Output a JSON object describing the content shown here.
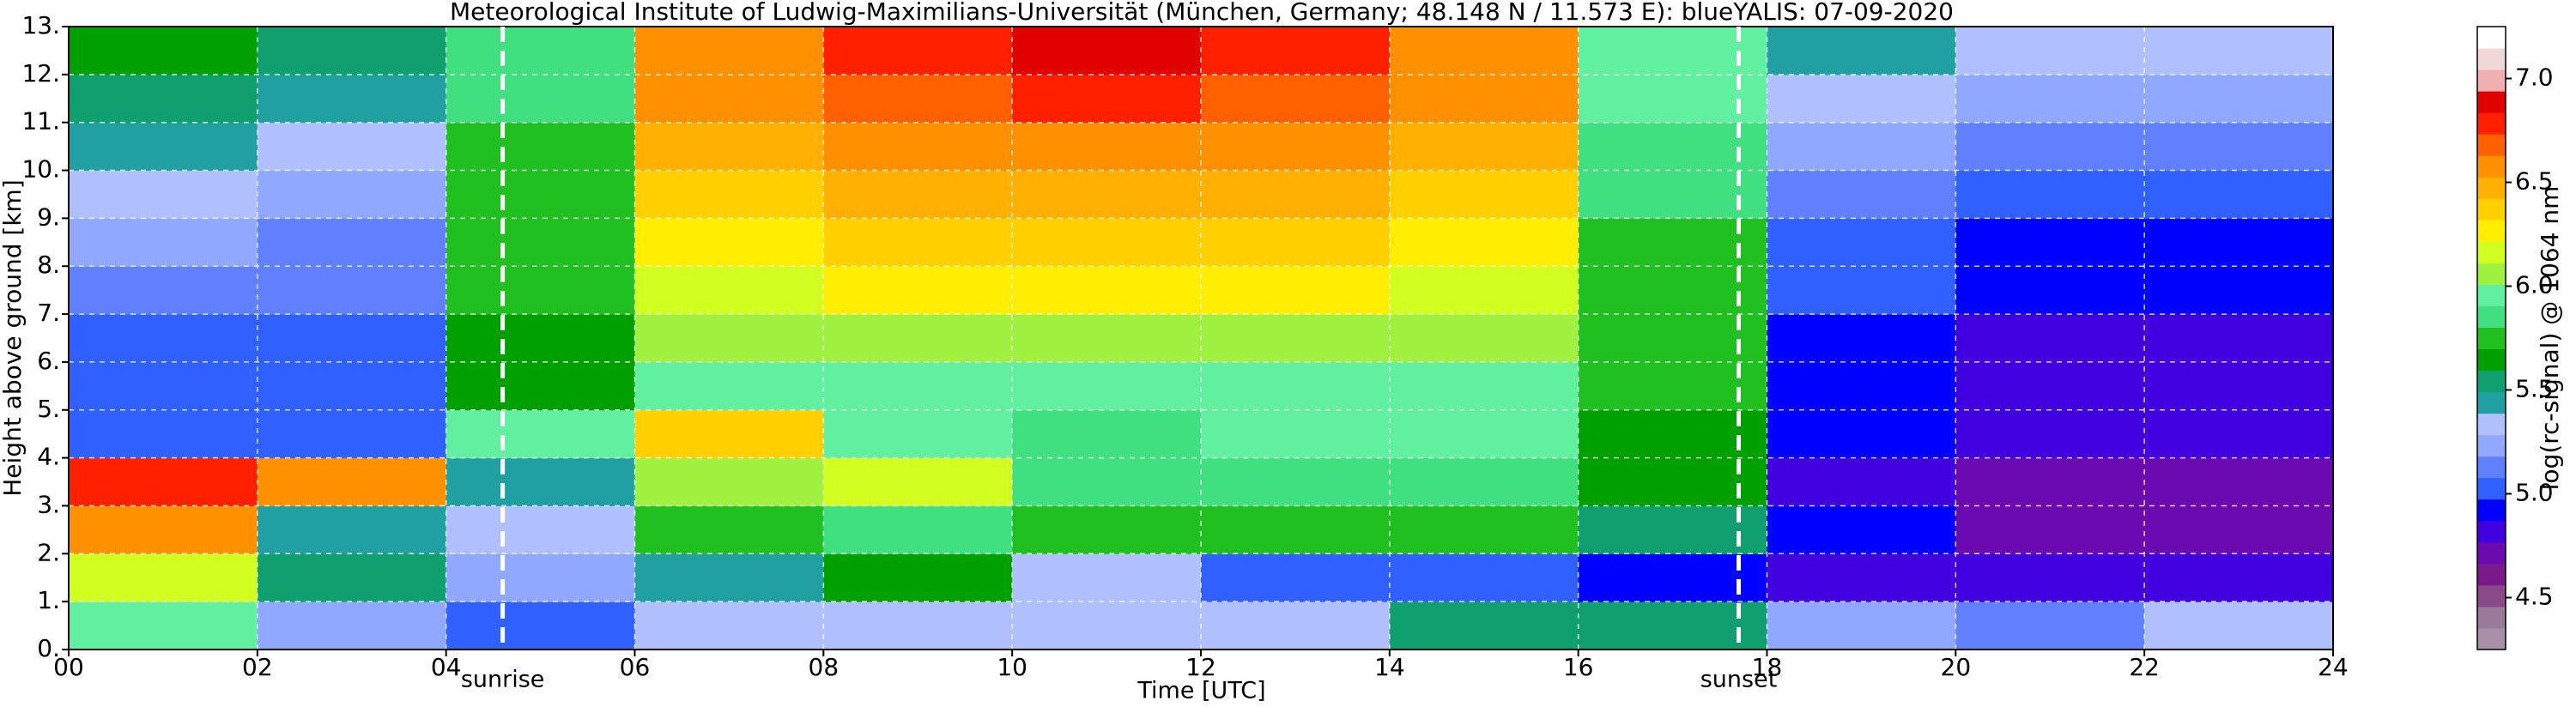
{
  "chart_data": {
    "type": "heatmap",
    "title": "Meteorological Institute of Ludwig-Maximilians-Universität (München, Germany; 48.148 N / 11.573 E):    blueYALIS: 07-09-2020",
    "x_label": "Time [UTC]",
    "y_label": "Height above ground [km]",
    "colorbar_label": "log(rc-signal) @ 1064 nm",
    "xlim": [
      0,
      24
    ],
    "xticks": [
      {
        "value": 0,
        "label": "00"
      },
      {
        "value": 2,
        "label": "02"
      },
      {
        "value": 4,
        "label": "04"
      },
      {
        "value": 6,
        "label": "06"
      },
      {
        "value": 8,
        "label": "08"
      },
      {
        "value": 10,
        "label": "10"
      },
      {
        "value": 12,
        "label": "12"
      },
      {
        "value": 14,
        "label": "14"
      },
      {
        "value": 16,
        "label": "16"
      },
      {
        "value": 18,
        "label": "18"
      },
      {
        "value": 20,
        "label": "20"
      },
      {
        "value": 22,
        "label": "22"
      },
      {
        "value": 24,
        "label": "24"
      }
    ],
    "ylim": [
      0,
      13
    ],
    "yticks": [
      {
        "value": 0,
        "label": "0."
      },
      {
        "value": 1,
        "label": "1."
      },
      {
        "value": 2,
        "label": "2."
      },
      {
        "value": 3,
        "label": "3."
      },
      {
        "value": 4,
        "label": "4."
      },
      {
        "value": 5,
        "label": "5."
      },
      {
        "value": 6,
        "label": "6."
      },
      {
        "value": 7,
        "label": "7."
      },
      {
        "value": 8,
        "label": "8."
      },
      {
        "value": 9,
        "label": "9."
      },
      {
        "value": 10,
        "label": "10."
      },
      {
        "value": 11,
        "label": "11."
      },
      {
        "value": 12,
        "label": "12."
      },
      {
        "value": 13,
        "label": "13."
      }
    ],
    "zlim": [
      4.25,
      7.25
    ],
    "zticks": [
      4.5,
      {
        "value": 5,
        "label": "5.0"
      },
      5.5,
      {
        "value": 6,
        "label": "6.0"
      },
      6.5,
      {
        "value": 7,
        "label": "7.0"
      }
    ],
    "grid": true,
    "colormap": [
      "#a890a8",
      "#9a7a9a",
      "#8a4a8a",
      "#7a1a8a",
      "#6a0ab0",
      "#4000e0",
      "#0000ff",
      "#3060ff",
      "#6080ff",
      "#90a8ff",
      "#b0c0ff",
      "#20a0a0",
      "#10a070",
      "#00a000",
      "#20c020",
      "#40e080",
      "#60f0a0",
      "#a0f040",
      "#d0ff20",
      "#ffee00",
      "#ffd000",
      "#ffb000",
      "#ff9000",
      "#ff6000",
      "#ff2000",
      "#e00000",
      "#f0b0b0",
      "#f0d8d8",
      "#ffffff"
    ],
    "x_edges": [
      0,
      2,
      4,
      6,
      8,
      10,
      12,
      14,
      16,
      18,
      20,
      22,
      24
    ],
    "y_edges": [
      0,
      1,
      2,
      3,
      4,
      5,
      6,
      7,
      8,
      9,
      10,
      11,
      12,
      13
    ],
    "values": [
      [
        6.0,
        5.2,
        5.0,
        5.3,
        5.3,
        5.3,
        5.3,
        5.5,
        5.5,
        5.2,
        5.1,
        5.3
      ],
      [
        6.2,
        5.5,
        5.2,
        5.4,
        5.6,
        5.3,
        5.0,
        5.0,
        4.9,
        4.8,
        4.8,
        4.8
      ],
      [
        6.6,
        5.4,
        5.3,
        5.8,
        5.9,
        5.8,
        5.8,
        5.8,
        5.5,
        4.9,
        4.7,
        4.7
      ],
      [
        6.8,
        6.6,
        5.4,
        6.1,
        6.2,
        5.9,
        5.9,
        5.9,
        5.6,
        4.8,
        4.7,
        4.7
      ],
      [
        5.0,
        5.0,
        6.0,
        6.4,
        6.0,
        5.9,
        6.0,
        6.0,
        5.6,
        4.9,
        4.8,
        4.8
      ],
      [
        5.0,
        5.0,
        5.6,
        6.0,
        6.0,
        6.0,
        6.0,
        6.0,
        5.7,
        4.9,
        4.8,
        4.8
      ],
      [
        5.0,
        5.0,
        5.6,
        6.1,
        6.1,
        6.1,
        6.1,
        6.1,
        5.7,
        4.9,
        4.8,
        4.8
      ],
      [
        5.1,
        5.1,
        5.7,
        6.2,
        6.3,
        6.3,
        6.3,
        6.2,
        5.8,
        5.0,
        4.9,
        4.9
      ],
      [
        5.2,
        5.1,
        5.7,
        6.3,
        6.4,
        6.4,
        6.4,
        6.3,
        5.8,
        5.0,
        4.9,
        4.9
      ],
      [
        5.3,
        5.2,
        5.8,
        6.4,
        6.5,
        6.5,
        6.5,
        6.4,
        5.9,
        5.1,
        5.0,
        5.0
      ],
      [
        5.4,
        5.3,
        5.8,
        6.5,
        6.6,
        6.6,
        6.6,
        6.5,
        5.9,
        5.2,
        5.1,
        5.1
      ],
      [
        5.5,
        5.4,
        5.9,
        6.6,
        6.7,
        6.8,
        6.7,
        6.6,
        6.0,
        5.3,
        5.2,
        5.2
      ],
      [
        5.6,
        5.5,
        5.9,
        6.6,
        6.8,
        6.9,
        6.8,
        6.6,
        6.0,
        5.4,
        5.3,
        5.3
      ]
    ],
    "annotations": [
      {
        "text": "sunrise",
        "x": 4.6
      },
      {
        "text": "sunset",
        "x": 17.7
      }
    ]
  }
}
